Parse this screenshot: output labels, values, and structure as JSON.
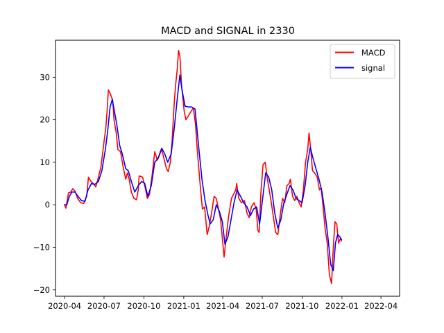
{
  "chart_data": {
    "type": "line",
    "title": "MACD and SIGNAL in 2330",
    "xlabel": "",
    "ylabel": "",
    "xlim": [
      "2020-03-11",
      "2022-05-14"
    ],
    "ylim": [
      -21.5,
      38.7
    ],
    "x_ticks": [
      "2020-04",
      "2020-07",
      "2020-10",
      "2021-01",
      "2021-04",
      "2021-07",
      "2021-10",
      "2022-01",
      "2022-04"
    ],
    "y_ticks": [
      -20,
      -10,
      0,
      10,
      20,
      30
    ],
    "legend": {
      "position": "top-right"
    },
    "grid": false,
    "series": [
      {
        "name": "MACD",
        "color": "#ff0000",
        "points": [
          [
            "2020-04-01",
            0.0
          ],
          [
            "2020-04-04",
            -0.8
          ],
          [
            "2020-04-10",
            2.8
          ],
          [
            "2020-04-15",
            3.0
          ],
          [
            "2020-04-20",
            3.8
          ],
          [
            "2020-04-25",
            3.2
          ],
          [
            "2020-05-01",
            1.5
          ],
          [
            "2020-05-08",
            0.5
          ],
          [
            "2020-05-15",
            0.3
          ],
          [
            "2020-05-22",
            2.0
          ],
          [
            "2020-05-26",
            6.5
          ],
          [
            "2020-06-01",
            5.5
          ],
          [
            "2020-06-06",
            5.0
          ],
          [
            "2020-06-12",
            4.2
          ],
          [
            "2020-06-18",
            6.5
          ],
          [
            "2020-06-24",
            9.0
          ],
          [
            "2020-06-30",
            14.0
          ],
          [
            "2020-07-05",
            18.0
          ],
          [
            "2020-07-08",
            22.0
          ],
          [
            "2020-07-11",
            27.0
          ],
          [
            "2020-07-16",
            26.0
          ],
          [
            "2020-07-21",
            24.5
          ],
          [
            "2020-07-24",
            20.0
          ],
          [
            "2020-07-29",
            17.0
          ],
          [
            "2020-08-02",
            13.0
          ],
          [
            "2020-08-08",
            12.5
          ],
          [
            "2020-08-14",
            9.0
          ],
          [
            "2020-08-20",
            6.0
          ],
          [
            "2020-08-24",
            7.5
          ],
          [
            "2020-08-28",
            6.0
          ],
          [
            "2020-09-02",
            3.0
          ],
          [
            "2020-09-08",
            1.5
          ],
          [
            "2020-09-14",
            1.2
          ],
          [
            "2020-09-18",
            3.5
          ],
          [
            "2020-09-20",
            6.8
          ],
          [
            "2020-09-28",
            6.5
          ],
          [
            "2020-10-04",
            4.0
          ],
          [
            "2020-10-09",
            1.5
          ],
          [
            "2020-10-14",
            2.5
          ],
          [
            "2020-10-20",
            7.0
          ],
          [
            "2020-10-26",
            12.5
          ],
          [
            "2020-11-01",
            10.5
          ],
          [
            "2020-11-05",
            11.5
          ],
          [
            "2020-11-11",
            13.0
          ],
          [
            "2020-11-16",
            11.0
          ],
          [
            "2020-11-22",
            8.5
          ],
          [
            "2020-11-26",
            7.8
          ],
          [
            "2020-12-01",
            10.0
          ],
          [
            "2020-12-05",
            15.0
          ],
          [
            "2020-12-10",
            24.0
          ],
          [
            "2020-12-13",
            28.0
          ],
          [
            "2020-12-17",
            32.0
          ],
          [
            "2020-12-20",
            36.3
          ],
          [
            "2020-12-23",
            35.0
          ],
          [
            "2020-12-27",
            28.0
          ],
          [
            "2021-01-02",
            22.0
          ],
          [
            "2021-01-06",
            20.0
          ],
          [
            "2021-01-12",
            21.0
          ],
          [
            "2021-01-18",
            22.0
          ],
          [
            "2021-01-23",
            22.8
          ],
          [
            "2021-01-28",
            19.0
          ],
          [
            "2021-02-01",
            13.0
          ],
          [
            "2021-02-08",
            4.5
          ],
          [
            "2021-02-13",
            -1.0
          ],
          [
            "2021-02-18",
            -0.5
          ],
          [
            "2021-02-24",
            -7.0
          ],
          [
            "2021-03-01",
            -5.0
          ],
          [
            "2021-03-06",
            -2.0
          ],
          [
            "2021-03-12",
            2.0
          ],
          [
            "2021-03-17",
            1.5
          ],
          [
            "2021-03-22",
            -1.0
          ],
          [
            "2021-03-27",
            -3.5
          ],
          [
            "2021-04-01",
            -9.0
          ],
          [
            "2021-04-04",
            -12.3
          ],
          [
            "2021-04-09",
            -7.5
          ],
          [
            "2021-04-14",
            -3.0
          ],
          [
            "2021-04-21",
            1.5
          ],
          [
            "2021-04-26",
            2.5
          ],
          [
            "2021-05-01",
            3.5
          ],
          [
            "2021-05-03",
            5.0
          ],
          [
            "2021-05-08",
            1.5
          ],
          [
            "2021-05-14",
            0.5
          ],
          [
            "2021-05-21",
            1.0
          ],
          [
            "2021-05-27",
            -2.0
          ],
          [
            "2021-06-01",
            -3.0
          ],
          [
            "2021-06-06",
            -0.5
          ],
          [
            "2021-06-12",
            0.5
          ],
          [
            "2021-06-17",
            -1.0
          ],
          [
            "2021-06-21",
            -6.0
          ],
          [
            "2021-06-24",
            -6.5
          ],
          [
            "2021-06-28",
            3.0
          ],
          [
            "2021-07-03",
            9.5
          ],
          [
            "2021-07-08",
            10.0
          ],
          [
            "2021-07-13",
            6.0
          ],
          [
            "2021-07-18",
            3.0
          ],
          [
            "2021-07-22",
            0.5
          ],
          [
            "2021-07-27",
            -3.0
          ],
          [
            "2021-08-01",
            -6.5
          ],
          [
            "2021-08-06",
            -7.0
          ],
          [
            "2021-08-12",
            -2.0
          ],
          [
            "2021-08-17",
            1.5
          ],
          [
            "2021-08-22",
            0.5
          ],
          [
            "2021-08-27",
            4.5
          ],
          [
            "2021-09-01",
            5.0
          ],
          [
            "2021-09-04",
            6.0
          ],
          [
            "2021-09-09",
            2.0
          ],
          [
            "2021-09-14",
            1.0
          ],
          [
            "2021-09-19",
            2.0
          ],
          [
            "2021-09-24",
            0.5
          ],
          [
            "2021-09-29",
            -0.5
          ],
          [
            "2021-10-04",
            3.5
          ],
          [
            "2021-10-09",
            10.0
          ],
          [
            "2021-10-14",
            13.0
          ],
          [
            "2021-10-17",
            16.9
          ],
          [
            "2021-10-21",
            13.0
          ],
          [
            "2021-10-25",
            8.0
          ],
          [
            "2021-10-30",
            7.5
          ],
          [
            "2021-11-05",
            6.5
          ],
          [
            "2021-11-10",
            3.5
          ],
          [
            "2021-11-14",
            4.0
          ],
          [
            "2021-11-18",
            0.0
          ],
          [
            "2021-11-23",
            -5.5
          ],
          [
            "2021-11-28",
            -9.0
          ],
          [
            "2021-12-03",
            -16.5
          ],
          [
            "2021-12-08",
            -18.5
          ],
          [
            "2021-12-12",
            -10.0
          ],
          [
            "2021-12-16",
            -4.0
          ],
          [
            "2021-12-20",
            -4.5
          ],
          [
            "2021-12-24",
            -9.0
          ],
          [
            "2021-12-28",
            -8.0
          ],
          [
            "2021-12-31",
            -8.5
          ]
        ]
      },
      {
        "name": "signal",
        "color": "#0000ff",
        "points": [
          [
            "2020-04-01",
            0.0
          ],
          [
            "2020-04-06",
            0.0
          ],
          [
            "2020-04-12",
            2.0
          ],
          [
            "2020-04-18",
            3.0
          ],
          [
            "2020-04-25",
            3.0
          ],
          [
            "2020-05-02",
            2.0
          ],
          [
            "2020-05-10",
            1.0
          ],
          [
            "2020-05-18",
            0.8
          ],
          [
            "2020-05-25",
            3.5
          ],
          [
            "2020-06-02",
            5.0
          ],
          [
            "2020-06-10",
            4.8
          ],
          [
            "2020-06-18",
            5.5
          ],
          [
            "2020-06-26",
            8.0
          ],
          [
            "2020-07-04",
            13.0
          ],
          [
            "2020-07-09",
            17.0
          ],
          [
            "2020-07-15",
            23.0
          ],
          [
            "2020-07-20",
            24.8
          ],
          [
            "2020-07-25",
            22.0
          ],
          [
            "2020-07-31",
            18.5
          ],
          [
            "2020-08-06",
            14.0
          ],
          [
            "2020-08-12",
            12.0
          ],
          [
            "2020-08-20",
            8.5
          ],
          [
            "2020-08-26",
            8.0
          ],
          [
            "2020-09-02",
            5.5
          ],
          [
            "2020-09-10",
            3.0
          ],
          [
            "2020-09-18",
            4.5
          ],
          [
            "2020-09-26",
            5.5
          ],
          [
            "2020-10-03",
            5.0
          ],
          [
            "2020-10-10",
            2.0
          ],
          [
            "2020-10-18",
            4.5
          ],
          [
            "2020-10-26",
            10.0
          ],
          [
            "2020-11-03",
            11.0
          ],
          [
            "2020-11-11",
            13.3
          ],
          [
            "2020-11-18",
            12.0
          ],
          [
            "2020-11-25",
            10.0
          ],
          [
            "2020-12-03",
            12.0
          ],
          [
            "2020-12-10",
            18.0
          ],
          [
            "2020-12-17",
            25.0
          ],
          [
            "2020-12-23",
            30.5
          ],
          [
            "2020-12-28",
            27.0
          ],
          [
            "2021-01-04",
            23.2
          ],
          [
            "2021-01-12",
            23.0
          ],
          [
            "2021-01-19",
            23.0
          ],
          [
            "2021-01-27",
            22.5
          ],
          [
            "2021-02-04",
            14.0
          ],
          [
            "2021-02-12",
            6.0
          ],
          [
            "2021-02-19",
            1.0
          ],
          [
            "2021-02-26",
            -2.5
          ],
          [
            "2021-03-03",
            -4.5
          ],
          [
            "2021-03-10",
            -3.5
          ],
          [
            "2021-03-17",
            0.0
          ],
          [
            "2021-03-24",
            -1.5
          ],
          [
            "2021-03-31",
            -4.0
          ],
          [
            "2021-04-06",
            -9.3
          ],
          [
            "2021-04-13",
            -7.5
          ],
          [
            "2021-04-20",
            -3.5
          ],
          [
            "2021-04-27",
            0.5
          ],
          [
            "2021-05-04",
            3.5
          ],
          [
            "2021-05-12",
            2.0
          ],
          [
            "2021-05-19",
            0.5
          ],
          [
            "2021-05-27",
            -0.5
          ],
          [
            "2021-06-04",
            -2.5
          ],
          [
            "2021-06-11",
            -1.0
          ],
          [
            "2021-06-18",
            -0.5
          ],
          [
            "2021-06-25",
            -4.5
          ],
          [
            "2021-07-02",
            1.5
          ],
          [
            "2021-07-09",
            7.5
          ],
          [
            "2021-07-16",
            6.5
          ],
          [
            "2021-07-23",
            3.5
          ],
          [
            "2021-07-30",
            -2.0
          ],
          [
            "2021-08-06",
            -5.5
          ],
          [
            "2021-08-13",
            -3.5
          ],
          [
            "2021-08-20",
            0.5
          ],
          [
            "2021-08-27",
            2.5
          ],
          [
            "2021-09-03",
            4.5
          ],
          [
            "2021-09-10",
            3.5
          ],
          [
            "2021-09-17",
            1.5
          ],
          [
            "2021-09-24",
            1.0
          ],
          [
            "2021-10-01",
            0.5
          ],
          [
            "2021-10-08",
            4.5
          ],
          [
            "2021-10-14",
            10.0
          ],
          [
            "2021-10-20",
            13.5
          ],
          [
            "2021-10-26",
            11.0
          ],
          [
            "2021-11-02",
            8.5
          ],
          [
            "2021-11-09",
            6.0
          ],
          [
            "2021-11-16",
            3.0
          ],
          [
            "2021-11-23",
            -2.0
          ],
          [
            "2021-11-30",
            -8.0
          ],
          [
            "2021-12-06",
            -14.0
          ],
          [
            "2021-12-12",
            -15.5
          ],
          [
            "2021-12-17",
            -9.0
          ],
          [
            "2021-12-22",
            -7.0
          ],
          [
            "2021-12-27",
            -7.5
          ],
          [
            "2021-12-31",
            -8.2
          ]
        ]
      }
    ]
  }
}
